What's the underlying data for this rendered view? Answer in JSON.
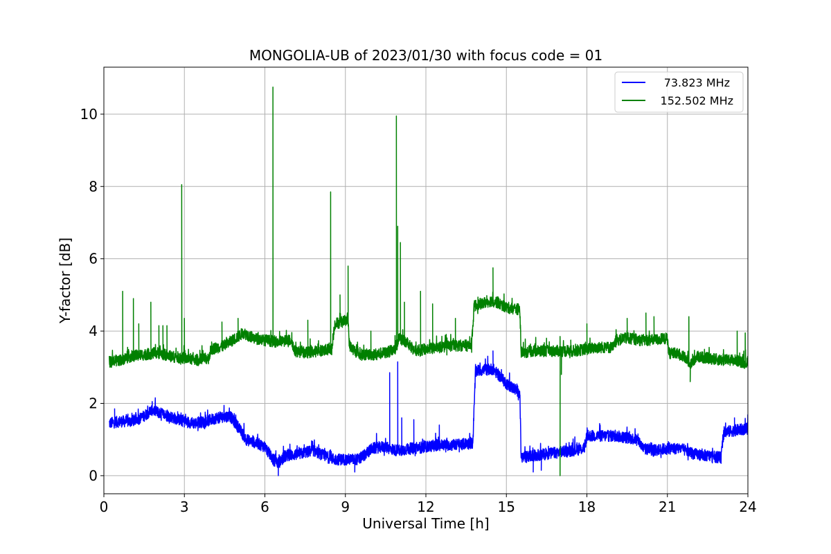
{
  "chart_data": {
    "type": "line",
    "title": "MONGOLIA-UB of 2023/01/30 with focus code = 01",
    "xlabel": "Universal Time [h]",
    "ylabel": "Y-factor [dB]",
    "xlim": [
      0,
      24
    ],
    "ylim": [
      -0.5,
      11.3
    ],
    "xticks": [
      0,
      3,
      6,
      9,
      12,
      15,
      18,
      21,
      24
    ],
    "yticks": [
      0,
      2,
      4,
      6,
      8,
      10
    ],
    "grid": true,
    "legend_position": "top-right",
    "series": [
      {
        "name": "73.823 MHz",
        "color": "#0000ff",
        "base": [
          [
            0.2,
            1.45
          ],
          [
            0.6,
            1.5
          ],
          [
            1.0,
            1.5
          ],
          [
            1.4,
            1.6
          ],
          [
            1.8,
            1.82
          ],
          [
            2.2,
            1.7
          ],
          [
            2.6,
            1.6
          ],
          [
            3.0,
            1.5
          ],
          [
            3.4,
            1.45
          ],
          [
            3.8,
            1.5
          ],
          [
            4.2,
            1.6
          ],
          [
            4.7,
            1.65
          ],
          [
            5.0,
            1.35
          ],
          [
            5.3,
            1.0
          ],
          [
            5.7,
            0.9
          ],
          [
            6.0,
            0.8
          ],
          [
            6.3,
            0.45
          ],
          [
            6.5,
            0.35
          ],
          [
            6.8,
            0.55
          ],
          [
            7.3,
            0.6
          ],
          [
            7.8,
            0.7
          ],
          [
            8.2,
            0.55
          ],
          [
            8.6,
            0.45
          ],
          [
            9.0,
            0.45
          ],
          [
            9.5,
            0.45
          ],
          [
            10.0,
            0.75
          ],
          [
            10.4,
            0.8
          ],
          [
            10.9,
            0.7
          ],
          [
            11.5,
            0.75
          ],
          [
            12.0,
            0.8
          ],
          [
            12.5,
            0.85
          ],
          [
            13.0,
            0.85
          ],
          [
            13.75,
            0.9
          ],
          [
            13.85,
            2.9
          ],
          [
            14.5,
            2.95
          ],
          [
            15.0,
            2.55
          ],
          [
            15.5,
            2.3
          ],
          [
            15.55,
            0.5
          ],
          [
            16.0,
            0.55
          ],
          [
            16.5,
            0.6
          ],
          [
            17.0,
            0.65
          ],
          [
            17.5,
            0.7
          ],
          [
            17.9,
            0.75
          ],
          [
            18.0,
            1.1
          ],
          [
            18.5,
            1.1
          ],
          [
            19.0,
            1.1
          ],
          [
            19.5,
            1.05
          ],
          [
            19.9,
            1.0
          ],
          [
            20.1,
            0.75
          ],
          [
            20.5,
            0.7
          ],
          [
            21.0,
            0.75
          ],
          [
            21.5,
            0.75
          ],
          [
            22.0,
            0.6
          ],
          [
            22.5,
            0.55
          ],
          [
            23.0,
            0.5
          ],
          [
            23.1,
            1.2
          ],
          [
            23.5,
            1.25
          ],
          [
            24.0,
            1.3
          ]
        ],
        "spikes": [
          [
            0.4,
            1.85
          ],
          [
            1.8,
            2.05
          ],
          [
            10.65,
            2.85
          ],
          [
            10.95,
            3.15
          ],
          [
            11.1,
            1.6
          ],
          [
            11.55,
            1.55
          ],
          [
            12.5,
            1.4
          ],
          [
            14.5,
            3.45
          ],
          [
            23.5,
            1.6
          ]
        ],
        "dips": [
          [
            6.5,
            0.0
          ],
          [
            9.35,
            0.1
          ],
          [
            11.6,
            0.55
          ],
          [
            16.0,
            0.1
          ],
          [
            16.3,
            0.15
          ]
        ]
      },
      {
        "name": "152.502 MHz",
        "color": "#008000",
        "base": [
          [
            0.2,
            3.15
          ],
          [
            0.6,
            3.2
          ],
          [
            1.0,
            3.3
          ],
          [
            1.5,
            3.35
          ],
          [
            2.0,
            3.4
          ],
          [
            2.5,
            3.3
          ],
          [
            3.0,
            3.25
          ],
          [
            3.5,
            3.2
          ],
          [
            3.9,
            3.25
          ],
          [
            4.0,
            3.5
          ],
          [
            4.5,
            3.6
          ],
          [
            4.9,
            3.8
          ],
          [
            5.2,
            3.95
          ],
          [
            5.6,
            3.8
          ],
          [
            6.0,
            3.75
          ],
          [
            6.5,
            3.7
          ],
          [
            7.0,
            3.75
          ],
          [
            7.1,
            3.45
          ],
          [
            7.5,
            3.4
          ],
          [
            8.0,
            3.45
          ],
          [
            8.5,
            3.5
          ],
          [
            8.6,
            4.2
          ],
          [
            9.1,
            4.3
          ],
          [
            9.15,
            3.6
          ],
          [
            9.5,
            3.35
          ],
          [
            10.0,
            3.35
          ],
          [
            10.5,
            3.4
          ],
          [
            10.9,
            3.5
          ],
          [
            11.0,
            3.8
          ],
          [
            11.3,
            3.7
          ],
          [
            11.6,
            3.45
          ],
          [
            12.0,
            3.5
          ],
          [
            12.5,
            3.55
          ],
          [
            13.0,
            3.6
          ],
          [
            13.7,
            3.6
          ],
          [
            13.8,
            4.7
          ],
          [
            14.5,
            4.85
          ],
          [
            15.0,
            4.65
          ],
          [
            15.5,
            4.6
          ],
          [
            15.55,
            3.4
          ],
          [
            16.0,
            3.45
          ],
          [
            16.5,
            3.45
          ],
          [
            17.0,
            3.45
          ],
          [
            17.5,
            3.45
          ],
          [
            18.0,
            3.5
          ],
          [
            18.5,
            3.55
          ],
          [
            19.0,
            3.55
          ],
          [
            19.1,
            3.75
          ],
          [
            19.5,
            3.8
          ],
          [
            20.0,
            3.75
          ],
          [
            20.5,
            3.75
          ],
          [
            21.0,
            3.8
          ],
          [
            21.05,
            3.4
          ],
          [
            21.5,
            3.35
          ],
          [
            21.9,
            3.1
          ],
          [
            22.1,
            3.3
          ],
          [
            22.5,
            3.25
          ],
          [
            23.0,
            3.2
          ],
          [
            23.5,
            3.2
          ],
          [
            24.0,
            3.1
          ]
        ],
        "spikes": [
          [
            0.7,
            5.1
          ],
          [
            1.1,
            4.9
          ],
          [
            1.3,
            4.2
          ],
          [
            1.75,
            4.8
          ],
          [
            2.05,
            4.15
          ],
          [
            2.2,
            4.15
          ],
          [
            2.35,
            4.15
          ],
          [
            2.9,
            8.05
          ],
          [
            3.0,
            4.35
          ],
          [
            4.4,
            4.25
          ],
          [
            5.0,
            4.35
          ],
          [
            6.3,
            10.75
          ],
          [
            7.6,
            4.3
          ],
          [
            8.45,
            7.85
          ],
          [
            8.8,
            5.0
          ],
          [
            9.1,
            5.8
          ],
          [
            9.95,
            4.0
          ],
          [
            10.9,
            9.95
          ],
          [
            10.95,
            6.9
          ],
          [
            11.05,
            6.45
          ],
          [
            11.2,
            4.8
          ],
          [
            11.8,
            5.1
          ],
          [
            12.25,
            4.75
          ],
          [
            13.1,
            4.35
          ],
          [
            14.5,
            5.75
          ],
          [
            17.0,
            3.85
          ],
          [
            17.4,
            3.75
          ],
          [
            18.0,
            4.2
          ],
          [
            19.5,
            4.35
          ],
          [
            20.2,
            4.5
          ],
          [
            20.5,
            4.4
          ],
          [
            21.8,
            4.4
          ],
          [
            23.6,
            4.0
          ],
          [
            23.9,
            3.95
          ]
        ],
        "dips": [
          [
            17.0,
            0.0
          ],
          [
            17.05,
            2.8
          ],
          [
            21.85,
            2.6
          ]
        ]
      }
    ]
  }
}
